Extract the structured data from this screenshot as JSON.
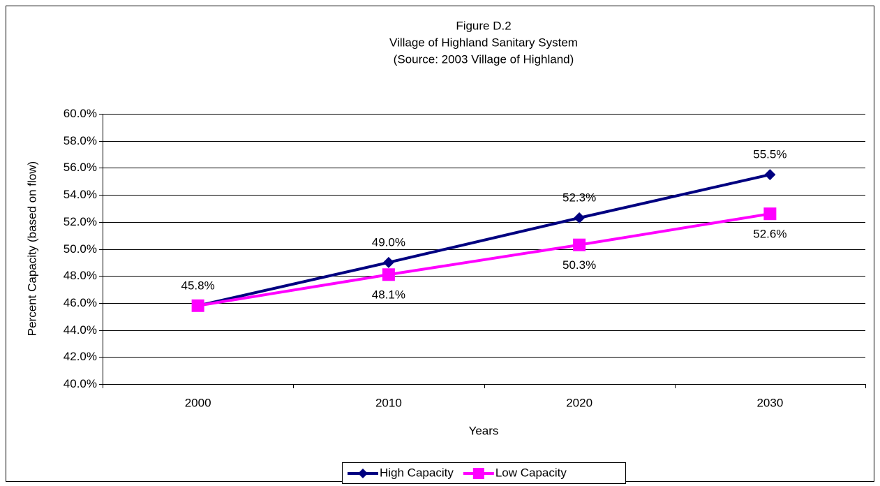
{
  "chart_data": {
    "type": "line",
    "title": [
      "Figure D.2",
      "Village of Highland Sanitary System",
      "(Source:  2003 Village of Highland)"
    ],
    "x_label": "Years",
    "y_label": "Percent Capacity (based on flow)",
    "categories": [
      "2000",
      "2010",
      "2020",
      "2030"
    ],
    "series": [
      {
        "name": "High Capacity",
        "color": "#000080",
        "marker": "diamond",
        "values": [
          45.8,
          49.0,
          52.3,
          55.5
        ],
        "value_labels": [
          "45.8%",
          "49.0%",
          "52.3%",
          "55.5%"
        ]
      },
      {
        "name": "Low Capacity",
        "color": "#ff00ff",
        "marker": "square",
        "values": [
          45.8,
          48.1,
          50.3,
          52.6
        ],
        "value_labels": [
          null,
          "48.1%",
          "50.3%",
          "52.6%"
        ]
      }
    ],
    "ylim": [
      40,
      60
    ],
    "yticks": [
      {
        "value": 40,
        "label": "40.0%"
      },
      {
        "value": 42,
        "label": "42.0%"
      },
      {
        "value": 44,
        "label": "44.0%"
      },
      {
        "value": 46,
        "label": "46.0%"
      },
      {
        "value": 48,
        "label": "48.0%"
      },
      {
        "value": 50,
        "label": "50.0%"
      },
      {
        "value": 52,
        "label": "52.0%"
      },
      {
        "value": 54,
        "label": "54.0%"
      },
      {
        "value": 56,
        "label": "56.0%"
      },
      {
        "value": 58,
        "label": "58.0%"
      },
      {
        "value": 60,
        "label": "60.0%"
      }
    ],
    "grid": true,
    "legend": "bottom"
  }
}
